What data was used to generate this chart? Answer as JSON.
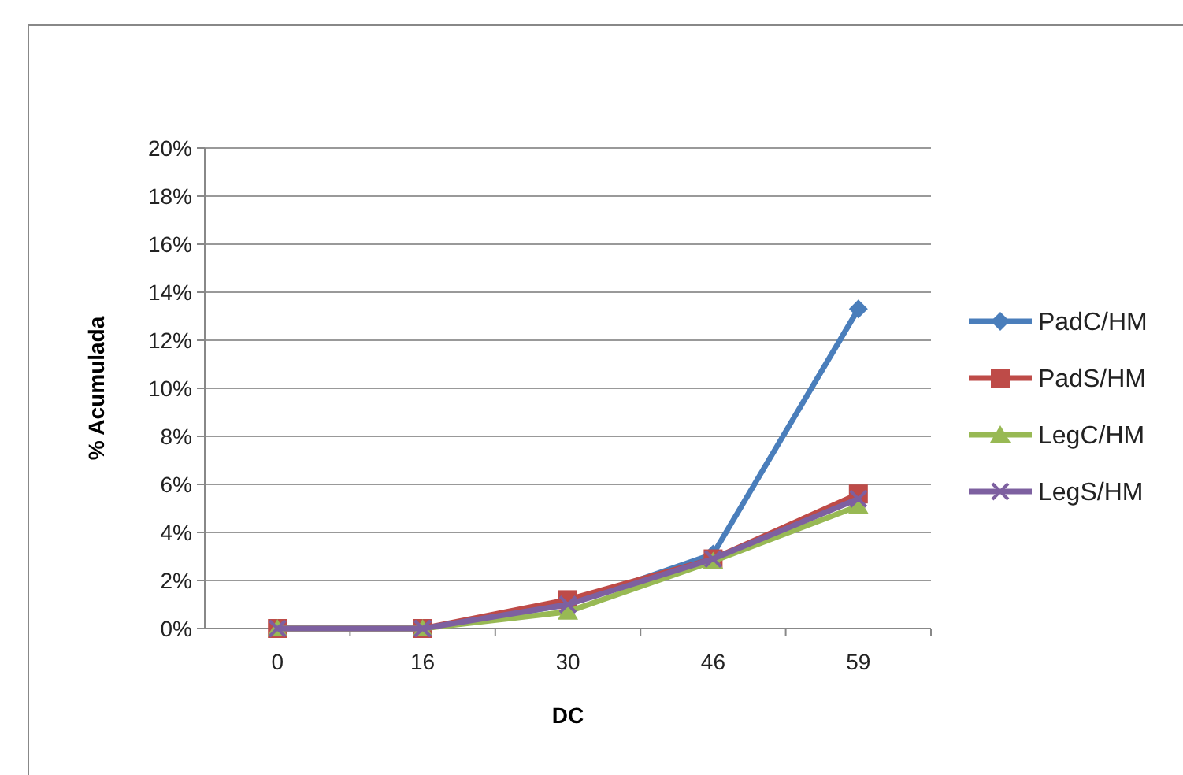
{
  "chart_data": {
    "type": "line",
    "xlabel": "DC",
    "ylabel": "% Acumulada",
    "categories": [
      "0",
      "16",
      "30",
      "46",
      "59"
    ],
    "series": [
      {
        "name": "PadC/HM",
        "color": "#4a7ebb",
        "marker": "diamond",
        "values": [
          0,
          0,
          1.0,
          3.1,
          13.3
        ]
      },
      {
        "name": "PadS/HM",
        "color": "#be4b48",
        "marker": "square",
        "values": [
          0,
          0,
          1.2,
          2.9,
          5.6
        ]
      },
      {
        "name": "LegC/HM",
        "color": "#98b954",
        "marker": "triangle",
        "values": [
          0,
          0,
          0.7,
          2.8,
          5.1
        ]
      },
      {
        "name": "LegS/HM",
        "color": "#7d60a0",
        "marker": "cross",
        "values": [
          0,
          0,
          1.0,
          2.9,
          5.4
        ]
      }
    ],
    "ylim": [
      0,
      20
    ],
    "yticks": [
      {
        "value": 0,
        "label": "0%"
      },
      {
        "value": 2,
        "label": "2%"
      },
      {
        "value": 4,
        "label": "4%"
      },
      {
        "value": 6,
        "label": "6%"
      },
      {
        "value": 8,
        "label": "8%"
      },
      {
        "value": 10,
        "label": "10%"
      },
      {
        "value": 12,
        "label": "12%"
      },
      {
        "value": 14,
        "label": "14%"
      },
      {
        "value": 16,
        "label": "16%"
      },
      {
        "value": 18,
        "label": "18%"
      },
      {
        "value": 20,
        "label": "20%"
      }
    ],
    "grid": "y",
    "legend": "right"
  }
}
